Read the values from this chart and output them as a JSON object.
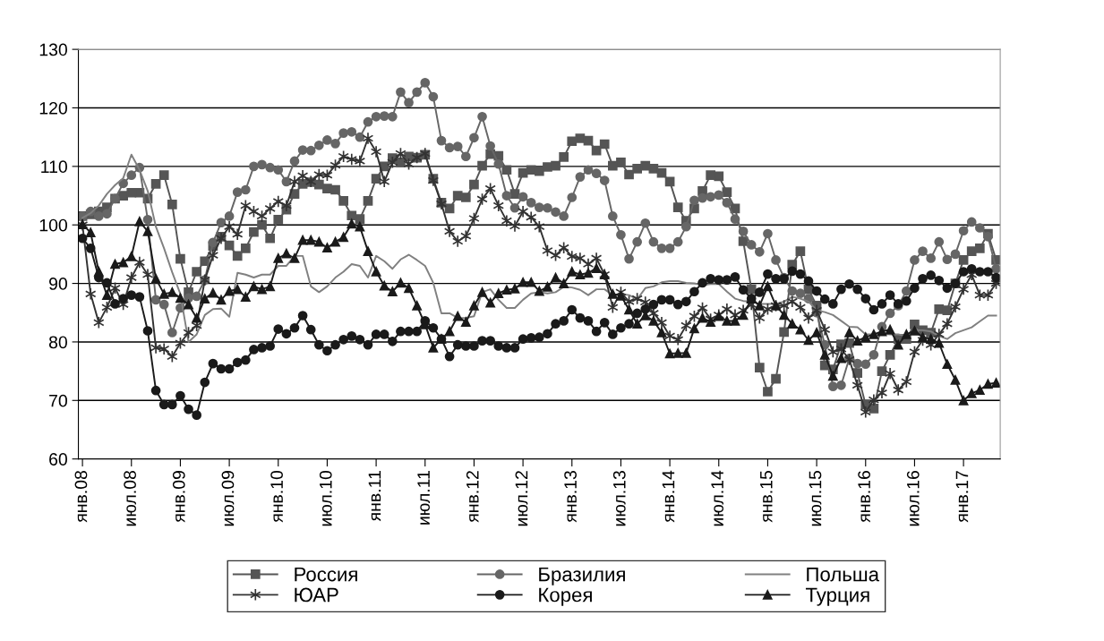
{
  "chart_data": {
    "type": "line",
    "categories": [
      "янв.08",
      null,
      null,
      null,
      null,
      null,
      "июл.08",
      null,
      null,
      null,
      null,
      null,
      "янв.09",
      null,
      null,
      null,
      null,
      null,
      "июл.09",
      null,
      null,
      null,
      null,
      null,
      "янв.10",
      null,
      null,
      null,
      null,
      null,
      "июл.10",
      null,
      null,
      null,
      null,
      null,
      "янв.11",
      null,
      null,
      null,
      null,
      null,
      "июл.11",
      null,
      null,
      null,
      null,
      null,
      "янв.12",
      null,
      null,
      null,
      null,
      null,
      "июл.12",
      null,
      null,
      null,
      null,
      null,
      "янв.13",
      null,
      null,
      null,
      null,
      null,
      "июл.13",
      null,
      null,
      null,
      null,
      null,
      "янв.14",
      null,
      null,
      null,
      null,
      null,
      "июл.14",
      null,
      null,
      null,
      null,
      null,
      "янв.15",
      null,
      null,
      null,
      null,
      null,
      "июл.15",
      null,
      null,
      null,
      null,
      null,
      "янв.16",
      null,
      null,
      null,
      null,
      null,
      "июл.16",
      null,
      null,
      null,
      null,
      null,
      "янв.17",
      null,
      null,
      null,
      null
    ],
    "series": [
      {
        "name": "Россия",
        "color": "#555555",
        "marker": "square",
        "values": [
          101.5,
          101.8,
          102.3,
          103,
          104.5,
          105,
          105.5,
          105.5,
          104.5,
          107,
          108.5,
          103.5,
          94.2,
          88.5,
          92,
          93.8,
          96.4,
          98,
          96.5,
          94.7,
          96,
          98.8,
          100,
          97.7,
          100.9,
          102.6,
          105.3,
          107,
          107.3,
          106.9,
          106.2,
          106,
          104.1,
          101.6,
          101,
          104.1,
          107.9,
          110,
          111.4,
          110.7,
          111.7,
          111.5,
          112,
          107.9,
          103.8,
          102.8,
          105,
          104.7,
          106.9,
          110.1,
          112.1,
          111.8,
          109.4,
          105.3,
          108.9,
          109.4,
          109.2,
          109.9,
          110.1,
          111.6,
          114.3,
          114.8,
          114.4,
          112.7,
          113.8,
          110.1,
          110.7,
          108.6,
          109.6,
          110.1,
          109.6,
          108.9,
          107.4,
          103,
          100.7,
          102.8,
          105.8,
          108.5,
          108.3,
          105.6,
          102.8,
          97.2,
          89,
          75.6,
          71.5,
          73.7,
          81.7,
          93.2,
          95.5,
          89,
          86.2,
          76,
          75.3,
          79.6,
          79.8,
          74.7,
          69.3,
          68.6,
          75,
          77.8,
          80.5,
          80.5,
          83,
          82,
          81.6,
          85.6,
          85.4,
          90,
          94,
          95.5,
          96,
          98.5,
          94
        ]
      },
      {
        "name": "Бразилия",
        "color": "#666666",
        "marker": "circle",
        "values": [
          101.5,
          102.3,
          101.5,
          101.9,
          104.5,
          107.1,
          108.5,
          109.8,
          100.9,
          87.2,
          86.4,
          81.6,
          85.8,
          87.5,
          87.8,
          90.6,
          97,
          100.4,
          101.5,
          105.6,
          106,
          110,
          110.3,
          109.8,
          109.4,
          107.4,
          110.9,
          112.8,
          112.7,
          113.6,
          114.5,
          113.9,
          115.7,
          115.9,
          115,
          117.6,
          118.5,
          118.6,
          118.5,
          122.7,
          120.9,
          122.7,
          124.3,
          121.9,
          114.4,
          113.2,
          113.4,
          111.7,
          114.9,
          118.5,
          113.5,
          110.4,
          105,
          102.9,
          104.8,
          103.8,
          103,
          102.9,
          102.2,
          101.5,
          104.7,
          108.2,
          109.4,
          108.8,
          107.6,
          101.5,
          98.3,
          94.2,
          97.1,
          100.3,
          97.1,
          96,
          96,
          97.1,
          99.7,
          104.2,
          104.6,
          104.8,
          105.1,
          103.8,
          101,
          98.9,
          96.6,
          95.4,
          98.5,
          94,
          91,
          88.7,
          88.3,
          87.4,
          85,
          79.5,
          72.4,
          72.6,
          77.2,
          76.3,
          76.2,
          77.8,
          82.6,
          84.9,
          86.2,
          88.7,
          94,
          95.5,
          94.3,
          97.1,
          94.1,
          95,
          99,
          100.5,
          99.5,
          98,
          92.5
        ]
      },
      {
        "name": "Польша",
        "color": "#808080",
        "marker": "none",
        "values": [
          101.2,
          102,
          103.3,
          105.3,
          106.8,
          108,
          112,
          109.4,
          105.8,
          99.7,
          96,
          91.9,
          88.2,
          80,
          81.3,
          84.6,
          85.6,
          85.7,
          84.3,
          91.8,
          91.5,
          91,
          91.5,
          91.5,
          93,
          93,
          94.7,
          94.7,
          89.5,
          88.5,
          89.5,
          91,
          92,
          93.3,
          93,
          91,
          94.7,
          93.8,
          92.5,
          94.1,
          94.9,
          94,
          93,
          90.1,
          84.9,
          84.9,
          84.1,
          84.1,
          84.4,
          88.5,
          89,
          87.2,
          85.8,
          85.8,
          87.2,
          88.3,
          88.5,
          88.3,
          88.5,
          89.4,
          89.3,
          88.9,
          88,
          89,
          89,
          88,
          88.2,
          88,
          87.3,
          89.2,
          89.5,
          90.2,
          90.4,
          90.4,
          90.1,
          90,
          89.7,
          89.9,
          89.9,
          88.6,
          87.4,
          87,
          86.9,
          86.5,
          86.5,
          86.5,
          86.9,
          87.7,
          87.4,
          86.9,
          85.4,
          85.1,
          84.6,
          83.6,
          82.6,
          82.5,
          81.3,
          81.3,
          81.4,
          81.3,
          81.3,
          81,
          82,
          82,
          81.8,
          81,
          80.5,
          81.5,
          82,
          82.5,
          83.5,
          84.5,
          84.5
        ]
      },
      {
        "name": "ЮАР",
        "color": "#333333",
        "marker": "cross",
        "values": [
          100,
          88.2,
          83.3,
          85.9,
          89.2,
          86.4,
          91,
          93.6,
          91.5,
          79,
          78.8,
          77.5,
          79.8,
          81.6,
          82.8,
          90.6,
          94.8,
          97.7,
          99.7,
          98.4,
          103.3,
          102.3,
          101.5,
          102.8,
          104,
          103.3,
          107.4,
          108.4,
          107.4,
          108.6,
          108.5,
          110.2,
          111.7,
          111.2,
          110.9,
          114.8,
          112.5,
          107.4,
          110.7,
          112.2,
          110.4,
          111.5,
          112.2,
          107.6,
          103.6,
          98.9,
          97.2,
          98.1,
          101.1,
          104.4,
          106.2,
          103.3,
          100.7,
          99.8,
          102.3,
          101.3,
          99.7,
          95.6,
          94.8,
          96.1,
          94.6,
          94.3,
          93.3,
          94.3,
          91.5,
          85.9,
          88.5,
          86.9,
          87.4,
          86.8,
          84.9,
          83.3,
          81,
          80.4,
          82.8,
          84.4,
          85.8,
          83.9,
          84.6,
          85.6,
          84.6,
          85.4,
          86.4,
          84.1,
          85.6,
          86.2,
          86.2,
          86.9,
          85.9,
          84.1,
          85.4,
          82.1,
          78.3,
          78.8,
          77,
          72.6,
          68,
          70.1,
          71.3,
          74.6,
          71.8,
          73.2,
          78.3,
          80.3,
          79.5,
          81.3,
          83.1,
          86,
          89,
          91.5,
          88,
          88,
          90
        ]
      },
      {
        "name": "Корея",
        "color": "#1a1a1a",
        "marker": "circle",
        "values": [
          97.7,
          96,
          91,
          90.1,
          86.5,
          87.4,
          88,
          87.7,
          81.9,
          71.7,
          69.3,
          69.3,
          70.8,
          68.5,
          67.5,
          73.1,
          76.3,
          75.4,
          75.4,
          76.5,
          76.9,
          78.7,
          79,
          79.3,
          82.2,
          81.4,
          82.4,
          84.5,
          82.1,
          79.5,
          78.5,
          79.5,
          80.4,
          81,
          80.4,
          79.5,
          81.3,
          81.3,
          80.1,
          81.8,
          81.8,
          81.8,
          83.6,
          82.4,
          80.5,
          77.5,
          79.5,
          79.3,
          79.3,
          80.2,
          80.2,
          79.3,
          79,
          79,
          80.5,
          80.7,
          80.8,
          81.4,
          83.1,
          83.6,
          85.5,
          84.1,
          83.6,
          81.8,
          83.3,
          81.3,
          82.4,
          83.1,
          84.9,
          85.6,
          86.4,
          87.2,
          87.2,
          86.4,
          86.9,
          88.6,
          90.1,
          90.8,
          90.6,
          90.6,
          91.1,
          88.9,
          87.4,
          88.5,
          91.6,
          90.8,
          90.8,
          92.1,
          91.6,
          90.4,
          88.7,
          87.3,
          86.5,
          89,
          89.9,
          89,
          87.4,
          85.5,
          86.5,
          88,
          86.5,
          87,
          89.2,
          90.8,
          91.4,
          90.5,
          89.2,
          90,
          92,
          92.5,
          92,
          92,
          91
        ]
      },
      {
        "name": "Турция",
        "color": "#1a1a1a",
        "marker": "triangle",
        "values": [
          100.1,
          98.7,
          92,
          88,
          93.3,
          93.6,
          94.6,
          100.6,
          98.9,
          90.8,
          88.2,
          88.5,
          87.5,
          86.4,
          84.1,
          87.4,
          88.4,
          87.2,
          88.7,
          89,
          87.7,
          89.5,
          89,
          89.5,
          94.3,
          95.1,
          94.3,
          97.4,
          97.4,
          97.1,
          96.1,
          97.1,
          97.9,
          100.2,
          99.7,
          95.5,
          92,
          89.6,
          88.6,
          90.1,
          89.2,
          86.2,
          83,
          79,
          80.5,
          81.8,
          84.4,
          83.4,
          86.2,
          88.5,
          86.7,
          88.3,
          88.9,
          89.1,
          90.2,
          90.2,
          88.7,
          89.4,
          91,
          90,
          92,
          91.5,
          91.8,
          92.6,
          91.5,
          88.2,
          87.9,
          85.5,
          83.1,
          84.5,
          83.6,
          81.6,
          78,
          78.1,
          78.1,
          82.3,
          84.1,
          83.4,
          84.4,
          83.6,
          83.6,
          84.6,
          87.4,
          86.2,
          89.5,
          86.2,
          84.6,
          83.1,
          82.1,
          80.3,
          81.6,
          77.8,
          74.2,
          77.2,
          81.6,
          80.2,
          80.8,
          81.3,
          81.8,
          82.1,
          79.5,
          81.3,
          81.9,
          80.8,
          80.5,
          79.8,
          76.2,
          73.5,
          70,
          71.2,
          71.8,
          72.8,
          73
        ]
      }
    ],
    "ylim": [
      60,
      130
    ],
    "yticks": [
      60,
      70,
      80,
      90,
      100,
      110,
      120,
      130
    ],
    "grid": "y",
    "legend": "bottom",
    "line_style": "solid"
  }
}
